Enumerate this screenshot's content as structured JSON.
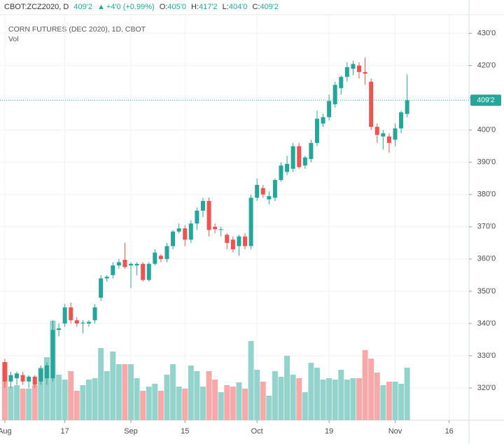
{
  "header": {
    "symbol": "CBOT:ZCZ2020, D",
    "last": "409'2",
    "arrow": "▲",
    "change": "+4'0 (+0.99%)",
    "ohlc": [
      {
        "key": "O:",
        "value": "405'0"
      },
      {
        "key": "H:",
        "value": "417'2"
      },
      {
        "key": "L:",
        "value": "404'0"
      },
      {
        "key": "C:",
        "value": "409'2"
      }
    ]
  },
  "chart_data": {
    "type": "candlestick",
    "title": "CORN FUTURES (DEC 2020), 1D, CBOT",
    "volume_label": "Vol",
    "last_price_label": "409'2",
    "up_color": "#26a69a",
    "down_color": "#ef5350",
    "volume_up_color": "#93d3cc",
    "volume_down_color": "#f6a9a8",
    "grid": true,
    "x": [
      0,
      1,
      2,
      3,
      4,
      5,
      6,
      7,
      8,
      9,
      10,
      11,
      12,
      13,
      14,
      15,
      16,
      17,
      18,
      19,
      20,
      21,
      22,
      23,
      24,
      25,
      26,
      27,
      28,
      29,
      30,
      31,
      32,
      33,
      34,
      35,
      36,
      37,
      38,
      39,
      40,
      41,
      42,
      43,
      44,
      45,
      46,
      47,
      48,
      49,
      50,
      51,
      52,
      53,
      54,
      55,
      56,
      57,
      58,
      59,
      60,
      61,
      62,
      63,
      64,
      65,
      66,
      67
    ],
    "open": [
      328,
      322,
      323,
      324,
      322,
      323.5,
      322,
      323,
      323,
      338,
      340,
      345,
      341,
      340,
      340,
      341,
      348,
      354,
      355,
      358,
      359.75,
      358,
      358,
      358.5,
      353.5,
      358.5,
      361,
      360,
      364,
      368.5,
      369.5,
      366,
      371,
      375,
      378,
      370,
      369,
      367.5,
      366,
      364,
      367,
      364,
      379,
      382,
      378.5,
      379,
      384.5,
      387,
      388,
      395,
      389,
      391,
      396,
      402,
      404,
      408,
      413,
      416.5,
      419,
      420,
      418,
      415,
      401,
      398,
      398,
      397,
      400.5,
      405
    ],
    "high": [
      329,
      325,
      325,
      325,
      324,
      324,
      327,
      328,
      341,
      340,
      346,
      346.5,
      342,
      341,
      341,
      346,
      355,
      355,
      359,
      360,
      365,
      359,
      359,
      359,
      359,
      363,
      361.5,
      365,
      369,
      371,
      370.5,
      372,
      376,
      379,
      379,
      371,
      370,
      368,
      367,
      367.5,
      368,
      380,
      385,
      383,
      381,
      385,
      390,
      392,
      396,
      396,
      392,
      397,
      406,
      405,
      411,
      415,
      417,
      421,
      421.5,
      421,
      422.5,
      416,
      402,
      400,
      399,
      402,
      406,
      417.25
    ],
    "low": [
      320,
      320,
      321,
      321,
      320,
      320,
      321,
      321,
      322,
      336,
      339,
      340,
      339,
      337,
      339,
      340,
      347,
      353,
      354,
      357,
      357,
      351,
      355,
      353,
      353,
      358,
      359,
      359,
      363,
      368,
      364,
      365,
      369,
      373,
      367,
      368,
      367,
      363,
      362,
      361,
      363,
      363,
      378,
      379,
      377,
      378,
      384,
      386,
      387,
      388,
      388,
      390,
      395,
      401,
      403,
      407,
      411,
      415,
      417,
      416,
      414,
      400,
      396,
      394,
      393,
      395,
      399,
      404
    ],
    "close": [
      322,
      324,
      324.5,
      322,
      323.5,
      321,
      326,
      327,
      338,
      338.5,
      345,
      341,
      340,
      340.25,
      340.5,
      345,
      354,
      354.5,
      358,
      359,
      357.5,
      358.5,
      358.5,
      353.5,
      358.5,
      362,
      360,
      364,
      368.5,
      369.5,
      366,
      371,
      375,
      378,
      369,
      369.25,
      369.25,
      365,
      363,
      367,
      364,
      379,
      383,
      380,
      379.5,
      384.5,
      389,
      389.5,
      395,
      388.5,
      391.5,
      396,
      403.5,
      404,
      409,
      414,
      416.5,
      419.5,
      420.5,
      418,
      417.5,
      401,
      398.5,
      399,
      396,
      400.5,
      405.5,
      409.25
    ],
    "volume": [
      83,
      48,
      50,
      45,
      45,
      50,
      75,
      90,
      142,
      65,
      58,
      70,
      42,
      50,
      58,
      60,
      103,
      70,
      98,
      80,
      80,
      80,
      60,
      42,
      48,
      52,
      42,
      65,
      80,
      48,
      45,
      78,
      70,
      48,
      70,
      58,
      40,
      50,
      48,
      54,
      45,
      113,
      72,
      55,
      35,
      70,
      62,
      92,
      65,
      60,
      40,
      82,
      75,
      58,
      60,
      58,
      72,
      58,
      60,
      60,
      100,
      88,
      68,
      50,
      55,
      55,
      52,
      75
    ],
    "volume_lim": [
      0,
      150
    ],
    "xlim": [
      -0.8,
      77.3
    ],
    "xticks": [
      {
        "value": 0,
        "label": "Aug"
      },
      {
        "value": 10,
        "label": "17"
      },
      {
        "value": 21,
        "label": "Sep"
      },
      {
        "value": 30,
        "label": "15"
      },
      {
        "value": 42,
        "label": "Oct"
      },
      {
        "value": 54,
        "label": "19"
      },
      {
        "value": 65,
        "label": "Nov"
      },
      {
        "value": 74,
        "label": "16"
      }
    ],
    "ylim": [
      310,
      436
    ],
    "yticks": [
      {
        "value": 320,
        "label": "320'0"
      },
      {
        "value": 330,
        "label": "330'0"
      },
      {
        "value": 340,
        "label": "340'0"
      },
      {
        "value": 350,
        "label": "350'0"
      },
      {
        "value": 360,
        "label": "360'0"
      },
      {
        "value": 370,
        "label": "370'0"
      },
      {
        "value": 380,
        "label": "380'0"
      },
      {
        "value": 390,
        "label": "390'0"
      },
      {
        "value": 400,
        "label": "400'0"
      },
      {
        "value": 410,
        "label": "410'0"
      },
      {
        "value": 420,
        "label": "420'0"
      },
      {
        "value": 430,
        "label": "430'0"
      }
    ]
  }
}
